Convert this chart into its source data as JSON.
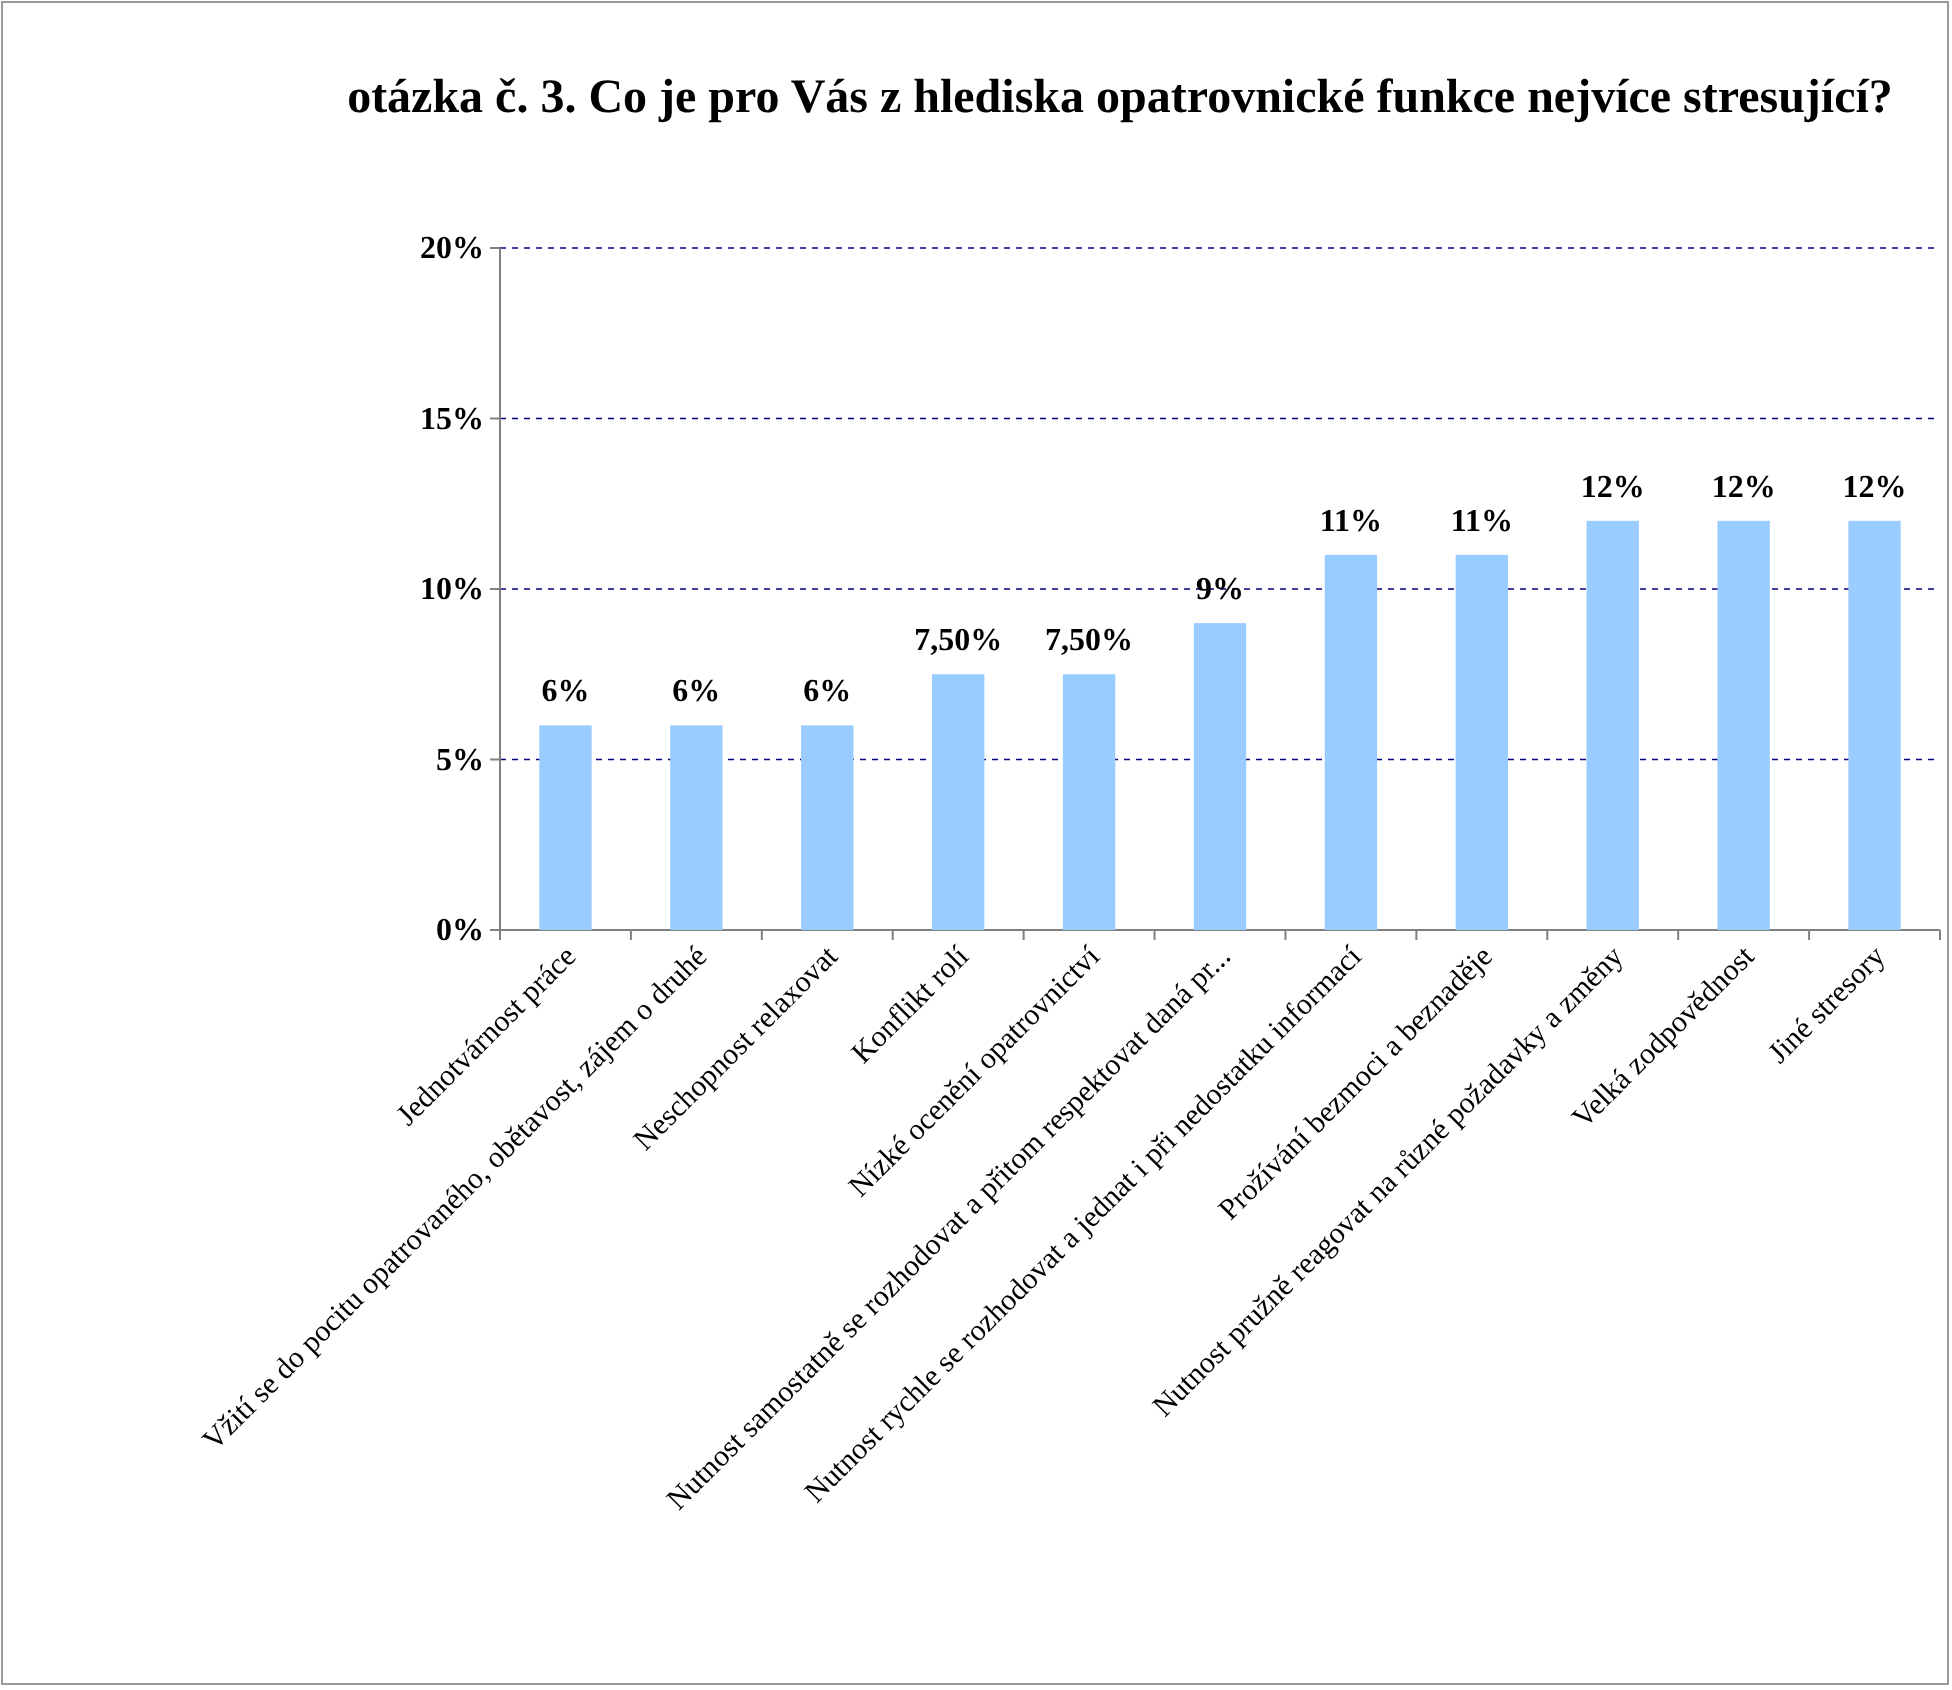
{
  "chart_data": {
    "type": "bar",
    "title": "otázka č. 3. Co je pro Vás z hlediska opatrovnické funkce nejvíce stresující?",
    "categories": [
      "Jednotvárnost práce",
      "Vžití se do pocitu opatrovaného, obětavost, zájem o druhé",
      "Neschopnost relaxovat",
      "Konflikt rolí",
      "Nízké ocenění opatrovnictví",
      "Nutnost samostatně se rozhodovat a přitom respektovat daná pr...",
      "Nutnost rychle se rozhodovat a jednat i při nedostatku informací",
      "Prožívání bezmoci a beznaděje",
      "Nutnost pružně reagovat na různé požadavky a změny",
      "Velká zodpovědnost",
      "Jiné stresory"
    ],
    "values": [
      6,
      6,
      6,
      7.5,
      7.5,
      9,
      11,
      11,
      12,
      12,
      12
    ],
    "value_labels": [
      "6%",
      "6%",
      "6%",
      "7,50%",
      "7,50%",
      "9%",
      "11%",
      "11%",
      "12%",
      "12%",
      "12%"
    ],
    "color": "#99ccff",
    "ylim": [
      0,
      20
    ],
    "yticks": [
      {
        "value": 0,
        "label": "0%"
      },
      {
        "value": 5,
        "label": "5%"
      },
      {
        "value": 10,
        "label": "10%"
      },
      {
        "value": 15,
        "label": "15%"
      },
      {
        "value": 20,
        "label": "20%"
      }
    ],
    "grid": "y"
  }
}
